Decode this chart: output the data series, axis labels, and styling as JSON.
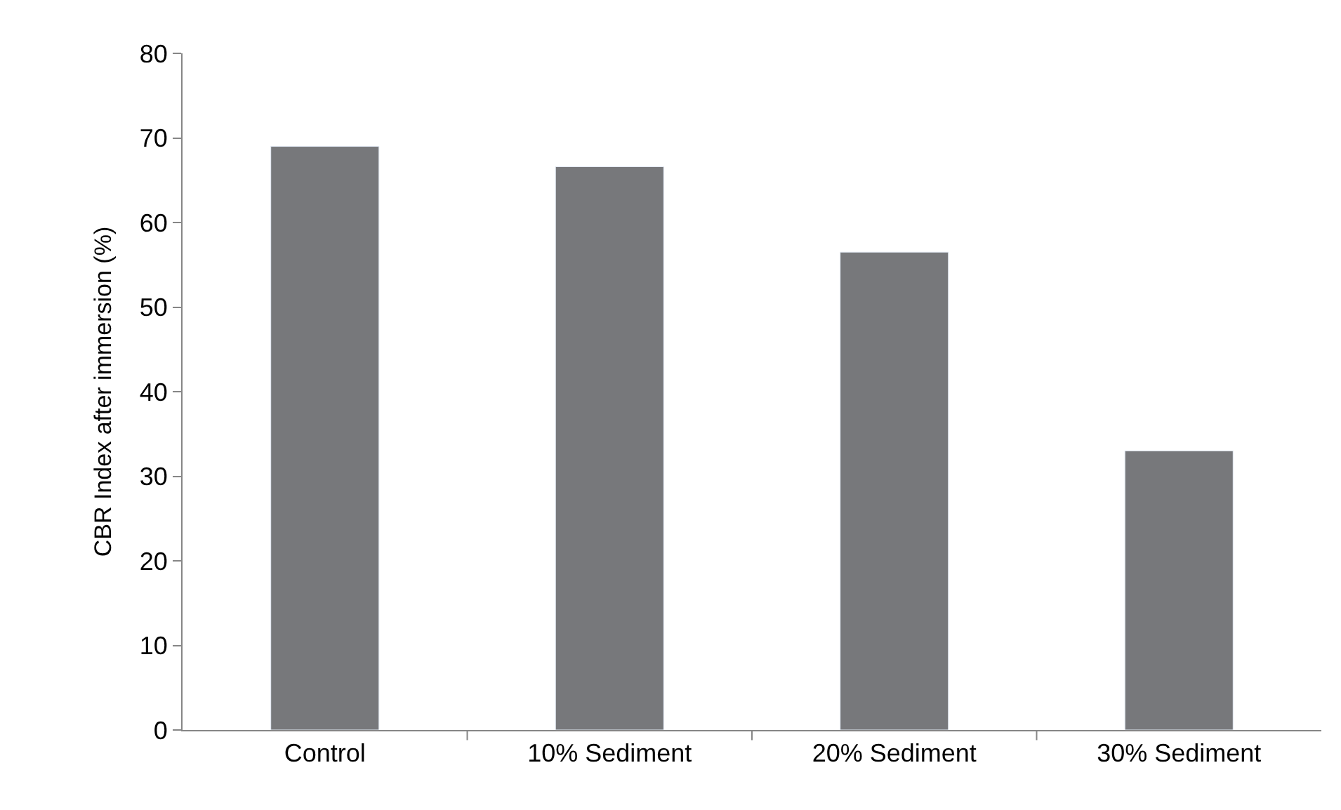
{
  "chart_data": {
    "type": "bar",
    "ylabel": "CBR Index after immersion (%)",
    "categories": [
      "Control",
      "10% Sediment",
      "20% Sediment",
      "30% Sediment"
    ],
    "values": [
      69,
      66.6,
      56.5,
      33
    ],
    "color": "#77787b",
    "ylim": [
      0,
      80
    ],
    "yticks": [
      0,
      10,
      20,
      30,
      40,
      50,
      60,
      70,
      80
    ],
    "legend": false
  }
}
